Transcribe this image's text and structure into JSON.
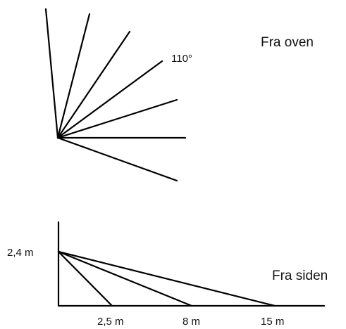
{
  "top_view": {
    "title": "Fra oven",
    "angle_label": "110°"
  },
  "side_view": {
    "title": "Fra siden",
    "height_label": "2,4 m",
    "distance_labels": [
      "2,5 m",
      "8 m",
      "15 m"
    ]
  }
}
